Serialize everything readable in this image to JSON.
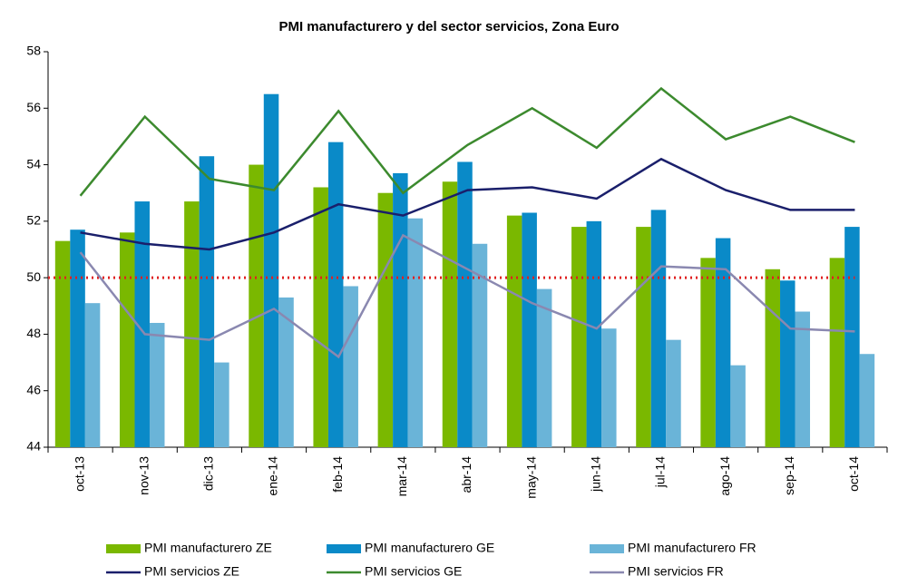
{
  "chart_data": {
    "type": "bar",
    "title": "PMI manufacturero y del sector servicios, Zona Euro",
    "categories": [
      "oct-13",
      "nov-13",
      "dic-13",
      "ene-14",
      "feb-14",
      "mar-14",
      "abr-14",
      "may-14",
      "jun-14",
      "jul-14",
      "ago-14",
      "sep-14",
      "oct-14"
    ],
    "series": [
      {
        "name": "PMI manufacturero ZE",
        "type": "bar",
        "color": "#7ab800",
        "values": [
          51.3,
          51.6,
          52.7,
          54.0,
          53.2,
          53.0,
          53.4,
          52.2,
          51.8,
          51.8,
          50.7,
          50.3,
          50.7
        ]
      },
      {
        "name": "PMI manufacturero GE",
        "type": "bar",
        "color": "#0a8ac8",
        "values": [
          51.7,
          52.7,
          54.3,
          56.5,
          54.8,
          53.7,
          54.1,
          52.3,
          52.0,
          52.4,
          51.4,
          49.9,
          51.8
        ]
      },
      {
        "name": "PMI manufacturero FR",
        "type": "bar",
        "color": "#6ab4d8",
        "values": [
          49.1,
          48.4,
          47.0,
          49.3,
          49.7,
          52.1,
          51.2,
          49.6,
          48.2,
          47.8,
          46.9,
          48.8,
          47.3
        ]
      },
      {
        "name": "PMI servicios ZE",
        "type": "line",
        "color": "#1a1f6b",
        "values": [
          51.6,
          51.2,
          51.0,
          51.6,
          52.6,
          52.2,
          53.1,
          53.2,
          52.8,
          54.2,
          53.1,
          52.4,
          52.4
        ]
      },
      {
        "name": "PMI servicios GE",
        "type": "line",
        "color": "#3c8a2e",
        "values": [
          52.9,
          55.7,
          53.5,
          53.1,
          55.9,
          53.0,
          54.7,
          56.0,
          54.6,
          56.7,
          54.9,
          55.7,
          54.8
        ]
      },
      {
        "name": "PMI servicios FR",
        "type": "line",
        "color": "#8a88b0",
        "values": [
          50.9,
          48.0,
          47.8,
          48.9,
          47.2,
          51.5,
          50.3,
          49.1,
          48.2,
          50.4,
          50.3,
          48.2,
          48.1
        ]
      }
    ],
    "reference_line": {
      "value": 50,
      "color": "#e02020"
    },
    "ylim": [
      44,
      58
    ],
    "yticks": [
      44,
      46,
      48,
      50,
      52,
      54,
      56,
      58
    ],
    "grid": false,
    "legend": "bottom"
  }
}
